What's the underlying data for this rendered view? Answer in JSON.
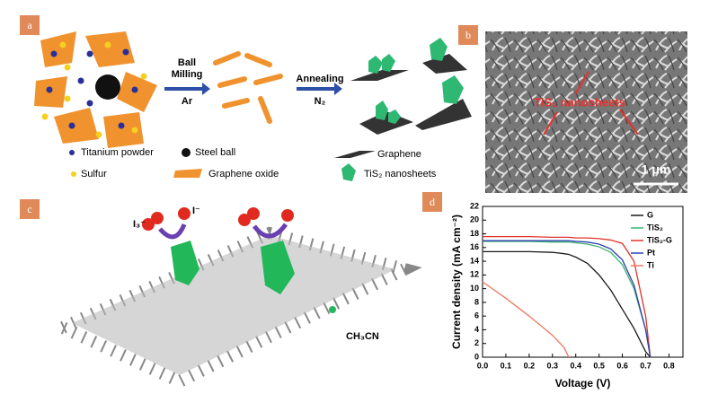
{
  "panels": [
    "a",
    "b",
    "c",
    "d"
  ],
  "panel_a": {
    "step1": [
      "Ball",
      "Milling",
      "Ar"
    ],
    "step2": [
      "Annealing",
      "N₂"
    ],
    "legend": [
      "Titanium powder",
      "Steel ball",
      "Sulfur",
      "Graphene oxide",
      "Graphene",
      "TiS₂ nanosheets"
    ]
  },
  "panel_b": {
    "annotation": "TiS₂ nanosheets",
    "scale_bar": "1 μm"
  },
  "panel_c": {
    "labels": [
      "I₃⁻",
      "I⁻",
      "CH₃CN"
    ]
  },
  "chart_data": {
    "type": "line",
    "x_label": "Voltage (V)",
    "y_label": "Current density (mA cm⁻²)",
    "x": [
      0,
      0.1,
      0.2,
      0.3,
      0.35,
      0.37,
      0.4,
      0.45,
      0.5,
      0.55,
      0.6,
      0.65,
      0.7,
      0.72
    ],
    "series": [
      {
        "name": "G",
        "color": "#1a1a1a",
        "values": [
          15.4,
          15.4,
          15.4,
          15.3,
          15.1,
          15.0,
          14.6,
          13.7,
          12.0,
          9.8,
          7.0,
          4.2,
          0.8,
          0
        ]
      },
      {
        "name": "TiS₂",
        "color": "#3cb371",
        "values": [
          16.9,
          16.9,
          16.9,
          16.8,
          16.8,
          16.8,
          16.7,
          16.5,
          16.1,
          15.3,
          13.5,
          10.0,
          4.0,
          0
        ]
      },
      {
        "name": "TiS₂-G",
        "color": "#e0322a",
        "values": [
          17.6,
          17.6,
          17.6,
          17.5,
          17.5,
          17.5,
          17.4,
          17.4,
          17.3,
          17.1,
          16.6,
          14.0,
          6.0,
          0
        ]
      },
      {
        "name": "Pt",
        "color": "#2f3fb5",
        "values": [
          17.0,
          17.0,
          17.0,
          17.0,
          17.0,
          17.0,
          16.9,
          16.8,
          16.5,
          15.8,
          14.2,
          10.5,
          4.0,
          0
        ]
      },
      {
        "name": "Ti",
        "color": "#f07860",
        "values": [
          11.0,
          8.6,
          6.0,
          3.2,
          1.4,
          0,
          null,
          null,
          null,
          null,
          null,
          null,
          null,
          null
        ]
      }
    ],
    "xlim": [
      0,
      0.86
    ],
    "xticks": [
      {
        "value": 0,
        "label": "0.0"
      },
      0.1,
      0.2,
      0.3,
      0.4,
      0.5,
      0.6,
      0.7,
      0.8
    ],
    "ylim": [
      0,
      22
    ],
    "yticks": [
      0,
      2,
      4,
      6,
      8,
      10,
      12,
      14,
      16,
      18,
      20,
      22
    ],
    "legend": "upper right"
  }
}
